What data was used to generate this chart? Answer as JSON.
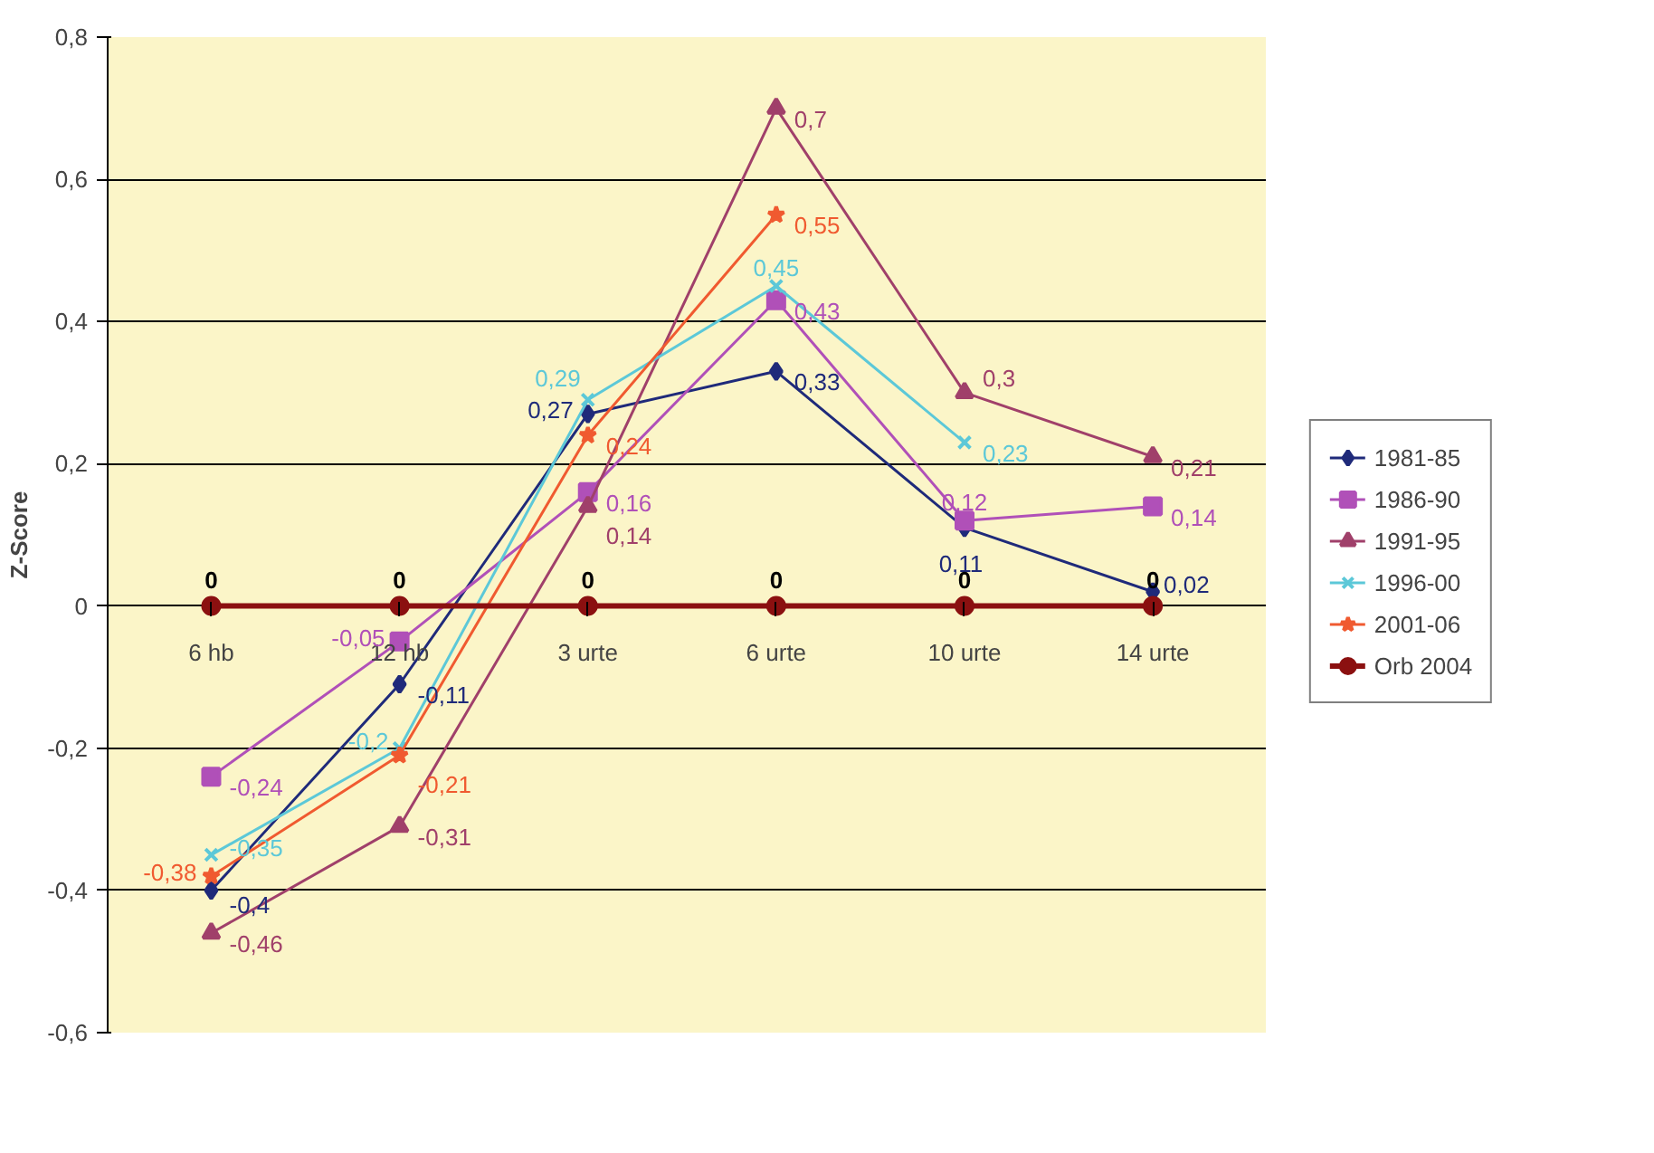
{
  "chart_data": {
    "type": "line",
    "ylabel": "Z-Score",
    "categories": [
      "6 hb",
      "12 hb",
      "3 urte",
      "6 urte",
      "10 urte",
      "14 urte"
    ],
    "series": [
      {
        "name": "1981-85",
        "color": "#1f2a7a",
        "marker": "diamond",
        "values": [
          -0.4,
          -0.11,
          0.27,
          0.33,
          0.11,
          0.02
        ],
        "value_labels": [
          "-0,4",
          "-0,11",
          "0,27",
          "0,33",
          "0,11",
          "0,02"
        ]
      },
      {
        "name": "1986-90",
        "color": "#b050b8",
        "marker": "square",
        "values": [
          -0.24,
          -0.05,
          0.16,
          0.43,
          0.12,
          0.14
        ],
        "value_labels": [
          "-0,24",
          "-0,05",
          "0,16",
          "0,43",
          "0,12",
          "0,14"
        ]
      },
      {
        "name": "1991-95",
        "color": "#a0406a",
        "marker": "triangle",
        "values": [
          -0.46,
          -0.31,
          0.14,
          0.7,
          0.3,
          0.21
        ],
        "value_labels": [
          "-0,46",
          "-0,31",
          "0,14",
          "0,7",
          "0,3",
          "0,21"
        ]
      },
      {
        "name": "1996-00",
        "color": "#5cc8d8",
        "marker": "cross",
        "values": [
          -0.35,
          -0.2,
          0.29,
          0.45,
          0.23,
          null
        ],
        "value_labels": [
          "-0,35",
          "-0,2",
          "0,29",
          "0,45",
          "0,23",
          null
        ]
      },
      {
        "name": "2001-06",
        "color": "#f05a30",
        "marker": "star",
        "values": [
          -0.38,
          -0.21,
          0.24,
          0.55,
          null,
          null
        ],
        "value_labels": [
          "-0,38",
          "-0,21",
          "0,24",
          "0,55",
          null,
          null
        ]
      },
      {
        "name": "Orb 2004",
        "color": "#8b1010",
        "marker": "circle",
        "values": [
          0,
          0,
          0,
          0,
          0,
          0
        ],
        "value_labels": [
          "0",
          "0",
          "0",
          "0",
          "0",
          "0"
        ]
      }
    ],
    "ylim": [
      -0.6,
      0.8
    ],
    "yticks": [
      {
        "value": -0.6,
        "label": "-0,6"
      },
      {
        "value": -0.4,
        "label": "-0,4"
      },
      {
        "value": -0.2,
        "label": "-0,2"
      },
      {
        "value": 0,
        "label": "0"
      },
      {
        "value": 0.2,
        "label": "0,2"
      },
      {
        "value": 0.4,
        "label": "0,4"
      },
      {
        "value": 0.6,
        "label": "0,6"
      },
      {
        "value": 0.8,
        "label": "0,8"
      }
    ],
    "grid": "y",
    "legend": "right",
    "data_labels": true
  }
}
